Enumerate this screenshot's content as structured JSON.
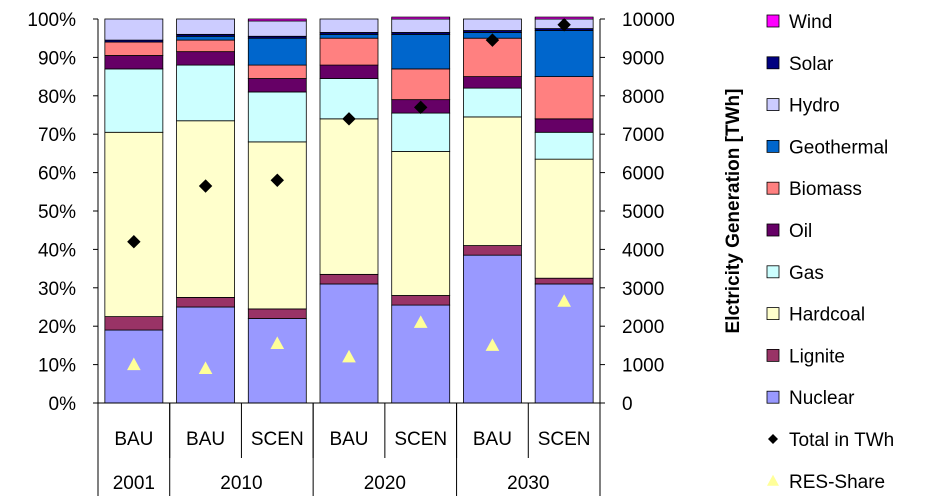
{
  "chart_data": {
    "type": "bar",
    "stacked": true,
    "percent_stacked": true,
    "categories": [
      {
        "scenario": "BAU",
        "year": "2001"
      },
      {
        "scenario": "BAU",
        "year": "2010"
      },
      {
        "scenario": "SCEN",
        "year": "2010"
      },
      {
        "scenario": "BAU",
        "year": "2020"
      },
      {
        "scenario": "SCEN",
        "year": "2020"
      },
      {
        "scenario": "BAU",
        "year": "2030"
      },
      {
        "scenario": "SCEN",
        "year": "2030"
      }
    ],
    "year_groups": [
      {
        "label": "2001",
        "span": 1
      },
      {
        "label": "2010",
        "span": 2
      },
      {
        "label": "2020",
        "span": 2
      },
      {
        "label": "2030",
        "span": 2
      }
    ],
    "series": [
      {
        "name": "Nuclear",
        "color": "#9999ff",
        "values": [
          19,
          25,
          22,
          31,
          25.5,
          38.5,
          31
        ]
      },
      {
        "name": "Lignite",
        "color": "#993366",
        "values": [
          3.5,
          2.5,
          2.5,
          2.5,
          2.5,
          2.5,
          1.5
        ]
      },
      {
        "name": "Hardcoal",
        "color": "#ffffcc",
        "values": [
          48,
          46,
          43.5,
          40.5,
          37.5,
          33.5,
          31
        ]
      },
      {
        "name": "Gas",
        "color": "#ccffff",
        "values": [
          16.5,
          14.5,
          13,
          10.5,
          10,
          7.5,
          7
        ]
      },
      {
        "name": "Oil",
        "color": "#660066",
        "values": [
          3.5,
          3.5,
          3.5,
          3.5,
          3.5,
          3,
          3.5
        ]
      },
      {
        "name": "Biomass",
        "color": "#ff8080",
        "values": [
          3.5,
          3,
          3.5,
          7,
          8,
          10,
          11
        ]
      },
      {
        "name": "Geothermal",
        "color": "#0066cc",
        "values": [
          0,
          1,
          7,
          1,
          9,
          1.5,
          12
        ]
      },
      {
        "name": "Solar",
        "color": "#000080",
        "values": [
          0.5,
          0.5,
          0.5,
          0.5,
          0.5,
          0.5,
          0.5
        ]
      },
      {
        "name": "Hydro",
        "color": "#ccccff",
        "values": [
          5.5,
          4,
          4,
          3.5,
          3.5,
          3,
          2.5
        ]
      },
      {
        "name": "Wind",
        "color": "#ff00ff",
        "values": [
          0,
          0,
          0.5,
          0,
          0.5,
          0,
          0.5
        ]
      }
    ],
    "markers": [
      {
        "name": "Total in TWh",
        "color": "#000000",
        "shape": "diamond",
        "axis": "right",
        "values": [
          4200,
          5650,
          5800,
          7400,
          7700,
          9450,
          9850
        ]
      },
      {
        "name": "RES-Share",
        "color": "#ffff99",
        "shape": "triangle",
        "axis": "left",
        "values": [
          10,
          9,
          15.5,
          12,
          21,
          15,
          26.5
        ]
      }
    ],
    "left_axis": {
      "ylim": [
        0,
        100
      ],
      "ticks": [
        "0%",
        "10%",
        "20%",
        "30%",
        "40%",
        "50%",
        "60%",
        "70%",
        "80%",
        "90%",
        "100%"
      ]
    },
    "right_axis": {
      "label": "Elctricity Generation [TWh]",
      "ylim": [
        0,
        10000
      ],
      "ticks": [
        "0",
        "1000",
        "2000",
        "3000",
        "4000",
        "5000",
        "6000",
        "7000",
        "8000",
        "9000",
        "10000"
      ]
    },
    "legend": {
      "placement": "right",
      "items": [
        {
          "label": "Wind",
          "color": "#ff00ff",
          "shape": "square"
        },
        {
          "label": "Solar",
          "color": "#000080",
          "shape": "square"
        },
        {
          "label": "Hydro",
          "color": "#ccccff",
          "shape": "square"
        },
        {
          "label": "Geothermal",
          "color": "#0066cc",
          "shape": "square"
        },
        {
          "label": "Biomass",
          "color": "#ff8080",
          "shape": "square"
        },
        {
          "label": "Oil",
          "color": "#660066",
          "shape": "square"
        },
        {
          "label": "Gas",
          "color": "#ccffff",
          "shape": "square"
        },
        {
          "label": "Hardcoal",
          "color": "#ffffcc",
          "shape": "square"
        },
        {
          "label": "Lignite",
          "color": "#993366",
          "shape": "square"
        },
        {
          "label": "Nuclear",
          "color": "#9999ff",
          "shape": "square"
        },
        {
          "label": "Total in TWh",
          "color": "#000000",
          "shape": "diamond"
        },
        {
          "label": "RES-Share",
          "color": "#ffff99",
          "shape": "triangle"
        }
      ]
    },
    "grid": false
  }
}
